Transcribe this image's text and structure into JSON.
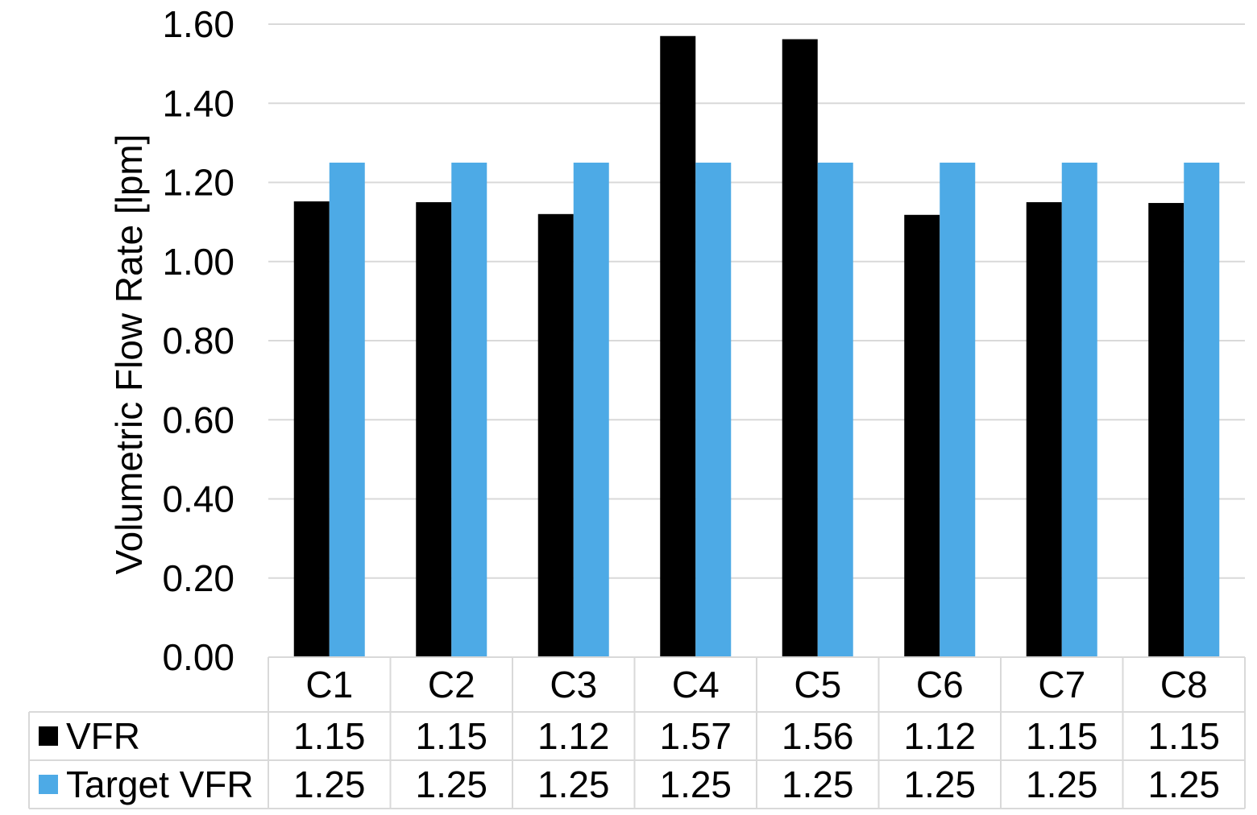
{
  "chart_data": {
    "type": "bar",
    "ylabel": "Volumetric Flow Rate [lpm]",
    "ylim": [
      0,
      1.6
    ],
    "yticks": [
      "0.00",
      "0.20",
      "0.40",
      "0.60",
      "0.80",
      "1.00",
      "1.20",
      "1.40",
      "1.60"
    ],
    "grid": true,
    "legend": "data-table",
    "categories": [
      "C1",
      "C2",
      "C3",
      "C4",
      "C5",
      "C6",
      "C7",
      "C8"
    ],
    "series": [
      {
        "name": "VFR",
        "color": "#000000",
        "values": [
          1.152,
          1.15,
          1.12,
          1.57,
          1.562,
          1.118,
          1.15,
          1.148
        ],
        "labels": [
          "1.15",
          "1.15",
          "1.12",
          "1.57",
          "1.56",
          "1.12",
          "1.15",
          "1.15"
        ]
      },
      {
        "name": "Target VFR",
        "color": "#4daae6",
        "values": [
          1.25,
          1.25,
          1.25,
          1.25,
          1.25,
          1.25,
          1.25,
          1.25
        ],
        "labels": [
          "1.25",
          "1.25",
          "1.25",
          "1.25",
          "1.25",
          "1.25",
          "1.25",
          "1.25"
        ]
      }
    ]
  }
}
